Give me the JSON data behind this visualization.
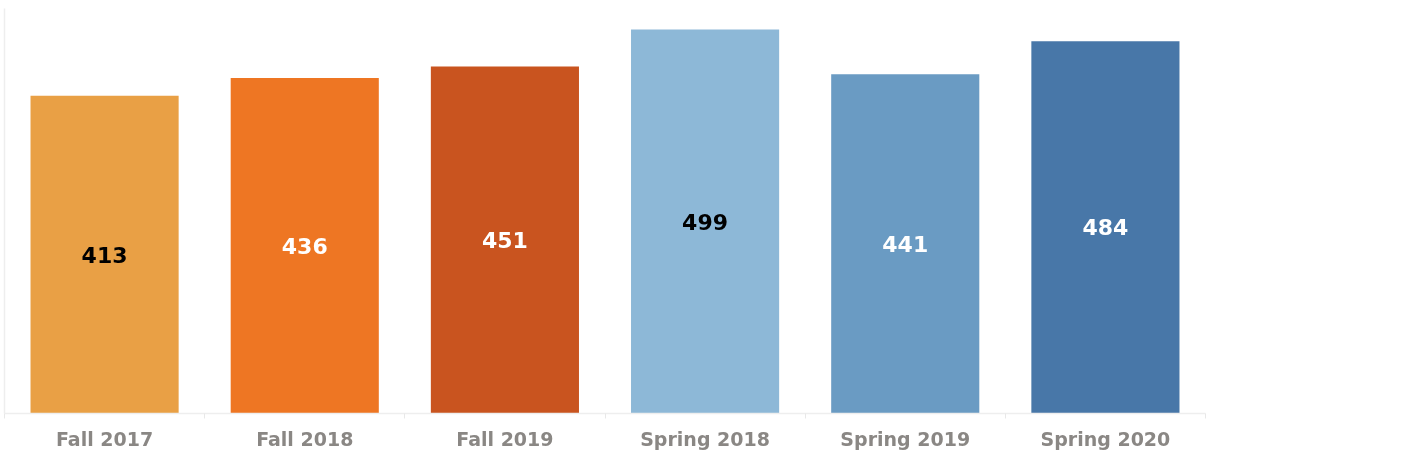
{
  "chart_data": {
    "type": "bar",
    "categories": [
      "Fall 2017",
      "Fall 2018",
      "Fall 2019",
      "Spring 2018",
      "Spring 2019",
      "Spring 2020"
    ],
    "values": [
      413,
      436,
      451,
      499,
      441,
      484
    ],
    "colors": [
      "#e9a045",
      "#ee7623",
      "#c9541f",
      "#8db8d7",
      "#6a9bc3",
      "#4877a8"
    ],
    "data_labels": true
  }
}
